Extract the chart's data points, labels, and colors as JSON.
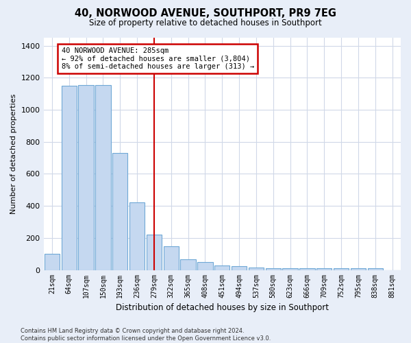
{
  "title1": "40, NORWOOD AVENUE, SOUTHPORT, PR9 7EG",
  "title2": "Size of property relative to detached houses in Southport",
  "xlabel": "Distribution of detached houses by size in Southport",
  "ylabel": "Number of detached properties",
  "bar_labels": [
    "21sqm",
    "64sqm",
    "107sqm",
    "150sqm",
    "193sqm",
    "236sqm",
    "279sqm",
    "322sqm",
    "365sqm",
    "408sqm",
    "451sqm",
    "494sqm",
    "537sqm",
    "580sqm",
    "623sqm",
    "666sqm",
    "709sqm",
    "752sqm",
    "795sqm",
    "838sqm",
    "881sqm"
  ],
  "bar_values": [
    100,
    1150,
    1155,
    1155,
    730,
    420,
    220,
    150,
    68,
    50,
    30,
    22,
    15,
    12,
    10,
    10,
    10,
    10,
    10,
    10,
    0
  ],
  "bar_color": "#c5d8f0",
  "bar_edge_color": "#6fa8d6",
  "vline_x_index": 6,
  "vline_color": "#cc0000",
  "annotation_text": "40 NORWOOD AVENUE: 285sqm\n← 92% of detached houses are smaller (3,804)\n8% of semi-detached houses are larger (313) →",
  "annotation_box_color": "#cc0000",
  "ylim": [
    0,
    1450
  ],
  "yticks": [
    0,
    200,
    400,
    600,
    800,
    1000,
    1200,
    1400
  ],
  "plot_bg_color": "#ffffff",
  "fig_bg_color": "#e8eef8",
  "grid_color": "#d0d8e8",
  "footer": "Contains HM Land Registry data © Crown copyright and database right 2024.\nContains public sector information licensed under the Open Government Licence v3.0."
}
